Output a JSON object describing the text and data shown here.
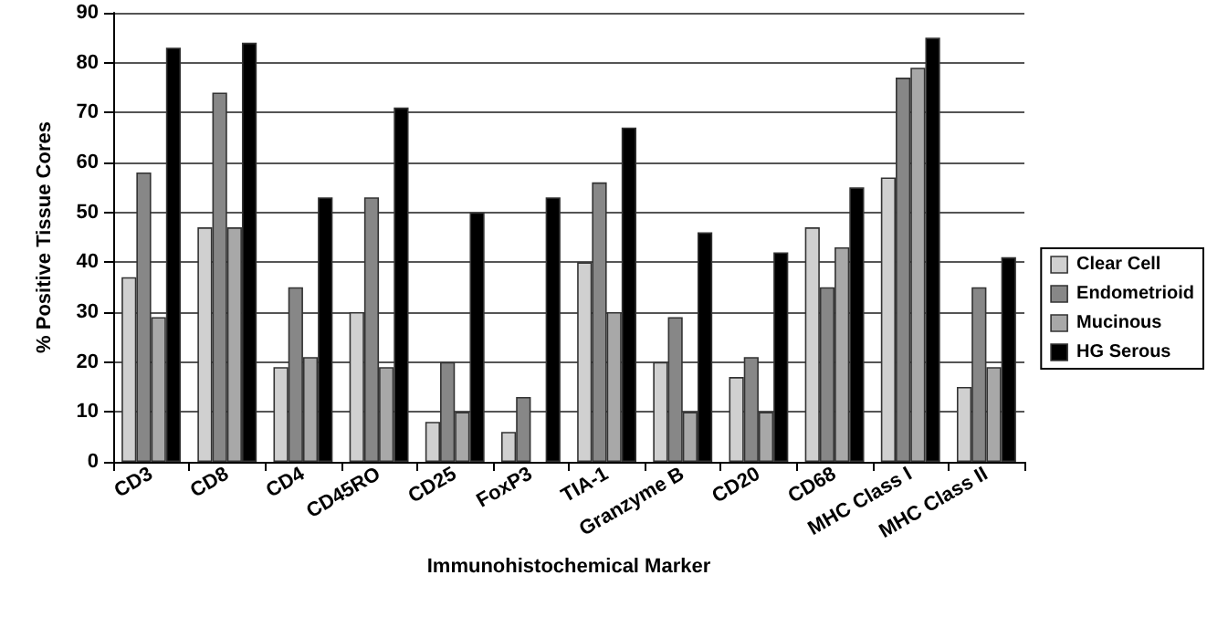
{
  "chart_data": {
    "type": "bar",
    "xlabel": "Immunohistochemical Marker",
    "ylabel": "% Positive Tissue Cores",
    "categories": [
      "CD3",
      "CD8",
      "CD4",
      "CD45RO",
      "CD25",
      "FoxP3",
      "TIA-1",
      "Granzyme B",
      "CD20",
      "CD68",
      "MHC Class I",
      "MHC Class II"
    ],
    "series": [
      {
        "name": "Clear Cell",
        "color": "#d0d0d0",
        "values": [
          37,
          47,
          19,
          30,
          8,
          6,
          40,
          20,
          17,
          47,
          57,
          15
        ]
      },
      {
        "name": "Endometrioid",
        "color": "#878787",
        "values": [
          58,
          74,
          35,
          53,
          20,
          13,
          56,
          29,
          21,
          35,
          77,
          35
        ]
      },
      {
        "name": "Mucinous",
        "color": "#a8a8a8",
        "values": [
          29,
          47,
          21,
          19,
          10,
          0,
          30,
          10,
          10,
          43,
          79,
          19
        ]
      },
      {
        "name": "HG Serous",
        "color": "#000000",
        "values": [
          83,
          84,
          53,
          71,
          50,
          53,
          67,
          46,
          42,
          55,
          85,
          41
        ]
      }
    ],
    "ylim": [
      0,
      90
    ],
    "yticks": [
      0,
      10,
      20,
      30,
      40,
      50,
      60,
      70,
      80,
      90
    ],
    "grid": "y",
    "legend": "right"
  }
}
